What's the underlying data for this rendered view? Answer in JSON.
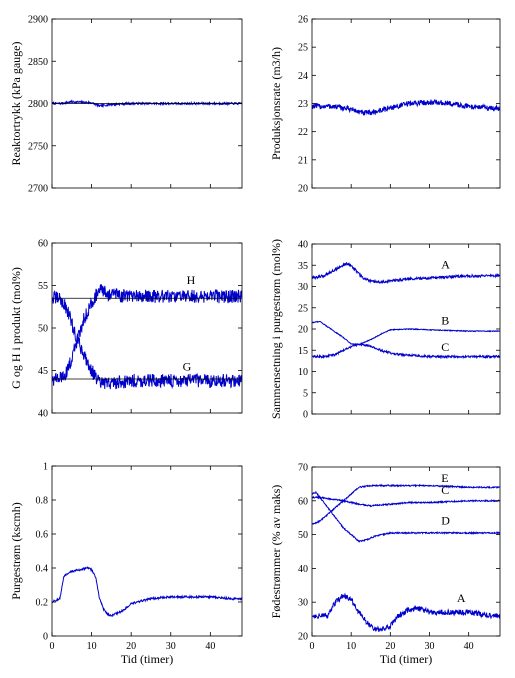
{
  "chart_data": [
    {
      "type": "line",
      "ylabel": "Reaktortrykk (kPa gauge)",
      "xlabel": "",
      "xlim": [
        0,
        48
      ],
      "ylim": [
        2700,
        2900
      ],
      "yticks": [
        2700,
        2750,
        2800,
        2850,
        2900
      ],
      "xticks": [
        0,
        10,
        20,
        30,
        40
      ],
      "show_xticklabels": false,
      "series": [
        {
          "color": "#0000cc",
          "noise": 1.2,
          "x": [
            0,
            2,
            5,
            10,
            12,
            15,
            20,
            25,
            30,
            35,
            40,
            45,
            48
          ],
          "y": [
            2800,
            2800,
            2802,
            2801,
            2797,
            2799,
            2800,
            2800,
            2800,
            2800,
            2800,
            2800,
            2800
          ]
        },
        {
          "color": "#000000",
          "noise": 0,
          "x": [
            0,
            48
          ],
          "y": [
            2800,
            2800
          ]
        }
      ],
      "annotations": []
    },
    {
      "type": "line",
      "ylabel": "Produksjonsrate (m3/h)",
      "xlabel": "",
      "xlim": [
        0,
        48
      ],
      "ylim": [
        20,
        26
      ],
      "yticks": [
        20,
        21,
        22,
        23,
        24,
        25,
        26
      ],
      "xticks": [
        0,
        10,
        20,
        30,
        40
      ],
      "show_xticklabels": false,
      "series": [
        {
          "color": "#0000cc",
          "noise": 0.1,
          "x": [
            0,
            5,
            10,
            13,
            16,
            20,
            25,
            30,
            35,
            40,
            45,
            48
          ],
          "y": [
            22.9,
            22.9,
            22.8,
            22.65,
            22.7,
            22.85,
            23.0,
            23.05,
            23.0,
            22.9,
            22.85,
            22.8
          ]
        }
      ],
      "annotations": []
    },
    {
      "type": "line",
      "ylabel": "G og H i produkt (mol%)",
      "xlabel": "",
      "xlim": [
        0,
        48
      ],
      "ylim": [
        40,
        60
      ],
      "yticks": [
        40,
        45,
        50,
        55,
        60
      ],
      "xticks": [
        0,
        10,
        20,
        30,
        40
      ],
      "show_xticklabels": false,
      "series": [
        {
          "color": "#0000cc",
          "noise": 0.8,
          "x": [
            0,
            2,
            4,
            6,
            8,
            10,
            12,
            14,
            20,
            30,
            40,
            48
          ],
          "y": [
            53.5,
            53.5,
            52,
            49,
            47,
            45,
            43.5,
            43.5,
            43.8,
            43.8,
            43.8,
            43.8
          ]
        },
        {
          "color": "#0000cc",
          "noise": 0.8,
          "x": [
            0,
            2,
            4,
            6,
            8,
            10,
            12,
            14,
            20,
            30,
            40,
            48
          ],
          "y": [
            44,
            44,
            45,
            48,
            51,
            53,
            54.5,
            54,
            53.7,
            53.7,
            53.7,
            53.7
          ]
        },
        {
          "color": "#000000",
          "noise": 0,
          "x": [
            0,
            48
          ],
          "y": [
            53.5,
            53.5
          ]
        },
        {
          "color": "#000000",
          "noise": 0,
          "x": [
            0,
            48
          ],
          "y": [
            44,
            44
          ]
        }
      ],
      "annotations": [
        {
          "text": "H",
          "x": 34,
          "y": 55.2
        },
        {
          "text": "G",
          "x": 33,
          "y": 45.0
        }
      ]
    },
    {
      "type": "line",
      "ylabel": "Sammensetning i purgestrøm (mol%)",
      "xlabel": "",
      "xlim": [
        0,
        48
      ],
      "ylim": [
        0,
        40
      ],
      "yticks": [
        0,
        5,
        10,
        15,
        20,
        25,
        30,
        35,
        40
      ],
      "xticks": [
        0,
        10,
        20,
        30,
        40
      ],
      "show_xticklabels": false,
      "series": [
        {
          "color": "#0000cc",
          "noise": 0.3,
          "x": [
            0,
            3,
            6,
            9,
            11,
            13,
            15,
            17,
            20,
            25,
            30,
            35,
            40,
            48
          ],
          "y": [
            32,
            32.5,
            34,
            35.5,
            34,
            32,
            31.2,
            31,
            31.3,
            31.8,
            32,
            32.3,
            32.5,
            32.5
          ]
        },
        {
          "color": "#0000cc",
          "noise": 0.1,
          "x": [
            0,
            2,
            4,
            8,
            10,
            12,
            15,
            18,
            20,
            25,
            30,
            40,
            48
          ],
          "y": [
            21.5,
            21.8,
            20.5,
            18,
            16.5,
            16.3,
            17.5,
            19,
            19.8,
            20,
            19.8,
            19.5,
            19.5
          ]
        },
        {
          "color": "#0000cc",
          "noise": 0.25,
          "x": [
            0,
            3,
            6,
            9,
            12,
            15,
            18,
            22,
            25,
            30,
            40,
            48
          ],
          "y": [
            13.5,
            13.5,
            14,
            15.5,
            16.5,
            16,
            14.8,
            14,
            13.8,
            13.5,
            13.5,
            13.5
          ]
        }
      ],
      "annotations": [
        {
          "text": "A",
          "x": 33,
          "y": 34.2
        },
        {
          "text": "B",
          "x": 33,
          "y": 21.1
        },
        {
          "text": "C",
          "x": 33,
          "y": 14.8
        }
      ]
    },
    {
      "type": "line",
      "ylabel": "Purgestrøm (kscmh)",
      "xlabel": "Tid (timer)",
      "xlim": [
        0,
        48
      ],
      "ylim": [
        0,
        1
      ],
      "yticks": [
        0,
        0.2,
        0.4,
        0.6,
        0.8,
        1
      ],
      "yticklabels": [
        "0",
        "0.2",
        "0.4",
        "0.6",
        "0.8",
        "1"
      ],
      "xticks": [
        0,
        10,
        20,
        30,
        40
      ],
      "show_xticklabels": true,
      "series": [
        {
          "color": "#0000cc",
          "noise": 0.006,
          "x": [
            0,
            1,
            2,
            3,
            5,
            7,
            9,
            10,
            11,
            12,
            13,
            14,
            15,
            16,
            18,
            20,
            25,
            30,
            35,
            40,
            45,
            48
          ],
          "y": [
            0.2,
            0.21,
            0.22,
            0.35,
            0.38,
            0.39,
            0.4,
            0.39,
            0.35,
            0.22,
            0.16,
            0.13,
            0.12,
            0.13,
            0.15,
            0.19,
            0.22,
            0.23,
            0.23,
            0.23,
            0.22,
            0.22
          ]
        }
      ],
      "annotations": []
    },
    {
      "type": "line",
      "ylabel": "Fødestrømmer (% av maks)",
      "xlabel": "Tid (timer)",
      "xlim": [
        0,
        48
      ],
      "ylim": [
        20,
        70
      ],
      "yticks": [
        20,
        30,
        40,
        50,
        60,
        70
      ],
      "xticks": [
        0,
        10,
        20,
        30,
        40
      ],
      "show_xticklabels": true,
      "series": [
        {
          "color": "#0000cc",
          "noise": 0.2,
          "x": [
            0,
            2,
            4,
            6,
            8,
            10,
            12,
            15,
            20,
            30,
            40,
            48
          ],
          "y": [
            53,
            54,
            56,
            58,
            60,
            62,
            64,
            64.5,
            64.5,
            64.5,
            64,
            64
          ]
        },
        {
          "color": "#0000cc",
          "noise": 0.2,
          "x": [
            0,
            2,
            5,
            8,
            10,
            12,
            15,
            20,
            25,
            30,
            40,
            48
          ],
          "y": [
            61,
            61,
            60.5,
            60,
            59.5,
            59,
            58.5,
            59,
            59.5,
            59.5,
            60,
            60
          ]
        },
        {
          "color": "#0000cc",
          "noise": 0.2,
          "x": [
            0,
            1,
            2,
            4,
            6,
            8,
            10,
            12,
            14,
            16,
            20,
            30,
            40,
            48
          ],
          "y": [
            62,
            62.5,
            61,
            58,
            55,
            52,
            50,
            48,
            48.5,
            49.5,
            50.5,
            50.5,
            50.5,
            50.5
          ]
        },
        {
          "color": "#0000cc",
          "noise": 0.8,
          "x": [
            0,
            2,
            4,
            6,
            8,
            10,
            12,
            14,
            16,
            18,
            20,
            22,
            25,
            28,
            30,
            35,
            40,
            45,
            48
          ],
          "y": [
            26,
            26,
            26,
            30,
            32,
            31,
            27,
            24,
            22,
            22,
            23,
            26,
            28,
            28,
            27,
            27,
            27,
            26,
            26
          ]
        }
      ],
      "annotations": [
        {
          "text": "E",
          "x": 33,
          "y": 65.6
        },
        {
          "text": "C",
          "x": 33,
          "y": 62.0
        },
        {
          "text": "D",
          "x": 33,
          "y": 53.0
        },
        {
          "text": "A",
          "x": 37,
          "y": 30.0
        }
      ]
    }
  ]
}
